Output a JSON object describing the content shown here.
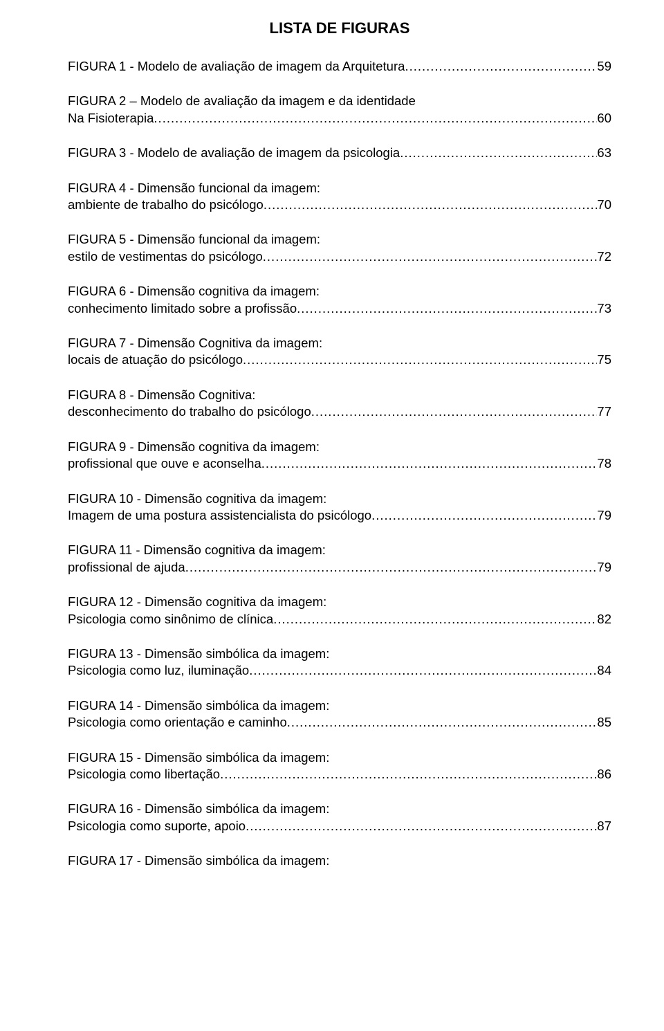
{
  "title": "LISTA DE FIGURAS",
  "dot_char": ".",
  "entries": [
    {
      "line1": "FIGURA 1 -  Modelo de avaliação de imagem da Arquitetura",
      "page": "59",
      "two_line": false
    },
    {
      "line1": "FIGURA 2 – Modelo de avaliação da imagem e da identidade",
      "label": "Na Fisioterapia",
      "page": "60",
      "two_line": true
    },
    {
      "line1": "FIGURA 3 -  Modelo de avaliação de imagem da psicologia",
      "page": "63",
      "two_line": false
    },
    {
      "line1": "FIGURA 4 -  Dimensão funcional da imagem:",
      "label": "ambiente de trabalho do psicólogo",
      "page": "70",
      "two_line": true
    },
    {
      "line1": "FIGURA 5 -  Dimensão funcional da imagem:",
      "label": "estilo de vestimentas do psicólogo",
      "page": "72",
      "two_line": true
    },
    {
      "line1": "FIGURA 6 -  Dimensão cognitiva da imagem:",
      "label": "conhecimento limitado sobre a profissão",
      "page": "73",
      "two_line": true
    },
    {
      "line1": "FIGURA 7 -  Dimensão Cognitiva da imagem:",
      "label": "locais de atuação do psicólogo",
      "page": "75",
      "two_line": true
    },
    {
      "line1": "FIGURA 8 -  Dimensão Cognitiva:",
      "label": "desconhecimento do trabalho do psicólogo",
      "page": "77",
      "two_line": true
    },
    {
      "line1": "FIGURA 9 -  Dimensão cognitiva da imagem:",
      "label": "profissional que ouve e aconselha",
      "page": "78",
      "two_line": true
    },
    {
      "line1": "FIGURA 10 - Dimensão cognitiva da imagem:",
      "label": "Imagem de uma postura assistencialista do psicólogo",
      "page": "79",
      "two_line": true
    },
    {
      "line1": "FIGURA 11 -  Dimensão cognitiva da imagem:",
      "label": "profissional de ajuda",
      "page": "79",
      "two_line": true
    },
    {
      "line1": "FIGURA 12 - Dimensão cognitiva da imagem:",
      "label": "Psicologia como sinônimo de clínica",
      "page": "82",
      "two_line": true
    },
    {
      "line1": "FIGURA 13 - Dimensão simbólica da imagem:",
      "label": "Psicologia como luz, iluminação",
      "page": "84",
      "two_line": true
    },
    {
      "line1": "FIGURA 14 - Dimensão simbólica da imagem:",
      "label": "Psicologia como orientação e caminho",
      "page": "85",
      "two_line": true
    },
    {
      "line1": "FIGURA 15 - Dimensão simbólica da imagem:",
      "label": "Psicologia como libertação",
      "page": "86",
      "two_line": true
    },
    {
      "line1": "FIGURA 16 - Dimensão simbólica da imagem:",
      "label": "Psicologia como suporte, apoio",
      "page": "87",
      "two_line": true
    },
    {
      "line1": "FIGURA 17 - Dimensão simbólica da imagem:",
      "page": "",
      "two_line": false,
      "no_dots": true
    }
  ]
}
